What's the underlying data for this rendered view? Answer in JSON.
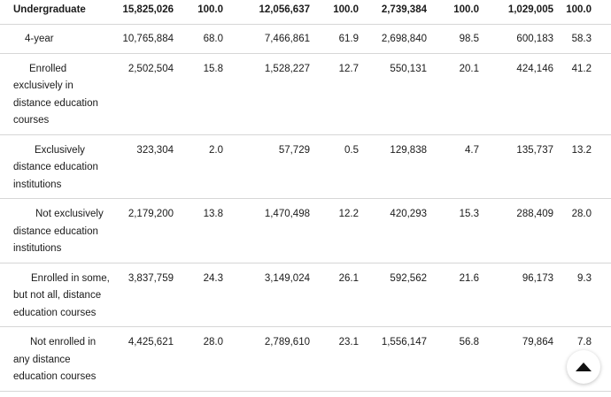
{
  "rows": [
    {
      "label": "Undergraduate",
      "values": [
        "15,825,026",
        "100.0",
        "12,056,637",
        "100.0",
        "2,739,384",
        "100.0",
        "1,029,005",
        "100.0"
      ]
    },
    {
      "label": "4-year",
      "values": [
        "10,765,884",
        "68.0",
        "7,466,861",
        "61.9",
        "2,698,840",
        "98.5",
        "600,183",
        "58.3"
      ]
    },
    {
      "label": "Enrolled exclusively in distance education courses",
      "values": [
        "2,502,504",
        "15.8",
        "1,528,227",
        "12.7",
        "550,131",
        "20.1",
        "424,146",
        "41.2"
      ]
    },
    {
      "label": "Exclusively distance education institutions",
      "values": [
        "323,304",
        "2.0",
        "57,729",
        "0.5",
        "129,838",
        "4.7",
        "135,737",
        "13.2"
      ]
    },
    {
      "label": "Not exclusively distance education institutions",
      "values": [
        "2,179,200",
        "13.8",
        "1,470,498",
        "12.2",
        "420,293",
        "15.3",
        "288,409",
        "28.0"
      ]
    },
    {
      "label": "Enrolled in some, but not all, distance education courses",
      "values": [
        "3,837,759",
        "24.3",
        "3,149,024",
        "26.1",
        "592,562",
        "21.6",
        "96,173",
        "9.3"
      ]
    },
    {
      "label": "Not enrolled in any distance education courses",
      "values": [
        "4,425,621",
        "28.0",
        "2,789,610",
        "23.1",
        "1,556,147",
        "56.8",
        "79,864",
        "7.8"
      ]
    }
  ],
  "scroll_top_icon": "triangle-up-icon"
}
